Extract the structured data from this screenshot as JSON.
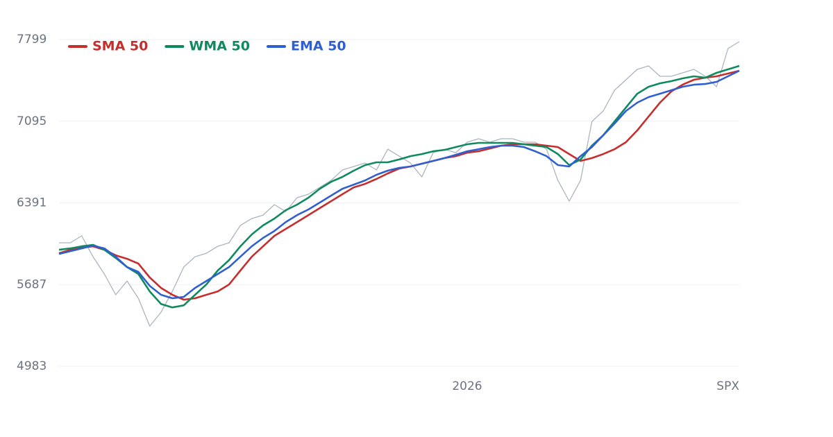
{
  "chart_data": {
    "type": "line",
    "x_label": "SPX",
    "categories": [
      null,
      null,
      null,
      null,
      null,
      null,
      null,
      null,
      null,
      null,
      null,
      null,
      null,
      null,
      null,
      null,
      null,
      null,
      null,
      null,
      null,
      null,
      null,
      null,
      null,
      null,
      null,
      null,
      null,
      null,
      null,
      null,
      null,
      null,
      null,
      null,
      "2026",
      null,
      null,
      null,
      null,
      null,
      null,
      null,
      null,
      null,
      null,
      null,
      null,
      null,
      null,
      null,
      null,
      null,
      null,
      null,
      null,
      null,
      null,
      null,
      null
    ],
    "ylim": [
      4983,
      7799
    ],
    "yticks": [
      4983,
      5687,
      6391,
      7095,
      7799
    ],
    "grid": true,
    "series": [
      {
        "color": "#aab4c0",
        "values": [
          6047,
          6047,
          6107,
          5927,
          5778,
          5599,
          5718,
          5569,
          5329,
          5449,
          5628,
          5838,
          5927,
          5957,
          6017,
          6047,
          6197,
          6256,
          6286,
          6376,
          6316,
          6436,
          6466,
          6525,
          6585,
          6675,
          6705,
          6735,
          6675,
          6854,
          6794,
          6735,
          6615,
          6824,
          6854,
          6824,
          6914,
          6944,
          6914,
          6944,
          6944,
          6914,
          6914,
          6854,
          6585,
          6406,
          6585,
          7093,
          7183,
          7362,
          7452,
          7542,
          7572,
          7482,
          7482,
          7512,
          7542,
          7482,
          7392,
          7721,
          7781
        ]
      },
      {
        "name": "SMA 50",
        "color": "#c62e2e",
        "values": [
          5957,
          5987,
          6005,
          6017,
          5987,
          5939,
          5909,
          5868,
          5748,
          5658,
          5599,
          5557,
          5569,
          5599,
          5628,
          5688,
          5808,
          5927,
          6017,
          6107,
          6167,
          6226,
          6286,
          6346,
          6406,
          6466,
          6525,
          6555,
          6597,
          6645,
          6687,
          6705,
          6729,
          6753,
          6777,
          6794,
          6824,
          6836,
          6860,
          6884,
          6896,
          6896,
          6896,
          6884,
          6872,
          6812,
          6753,
          6777,
          6812,
          6854,
          6914,
          7016,
          7135,
          7255,
          7351,
          7410,
          7452,
          7470,
          7482,
          7506,
          7530
        ]
      },
      {
        "name": "WMA 50",
        "color": "#0f8a5f",
        "values": [
          5987,
          5999,
          6017,
          6029,
          5987,
          5916,
          5838,
          5778,
          5628,
          5520,
          5490,
          5508,
          5599,
          5688,
          5808,
          5898,
          6017,
          6119,
          6197,
          6256,
          6328,
          6376,
          6436,
          6513,
          6573,
          6615,
          6669,
          6717,
          6741,
          6741,
          6765,
          6794,
          6812,
          6836,
          6848,
          6872,
          6896,
          6908,
          6908,
          6908,
          6908,
          6896,
          6884,
          6872,
          6812,
          6717,
          6764,
          6884,
          6974,
          7093,
          7213,
          7332,
          7392,
          7422,
          7440,
          7464,
          7482,
          7470,
          7512,
          7542,
          7572
        ]
      },
      {
        "name": "EMA 50",
        "color": "#2f5fd0",
        "values": [
          5951,
          5975,
          5999,
          6023,
          5999,
          5927,
          5838,
          5796,
          5676,
          5599,
          5569,
          5581,
          5658,
          5718,
          5778,
          5838,
          5927,
          6017,
          6089,
          6149,
          6226,
          6286,
          6334,
          6394,
          6454,
          6513,
          6549,
          6585,
          6633,
          6669,
          6693,
          6705,
          6729,
          6753,
          6777,
          6806,
          6836,
          6854,
          6872,
          6884,
          6884,
          6872,
          6836,
          6794,
          6717,
          6705,
          6794,
          6872,
          6974,
          7075,
          7183,
          7255,
          7303,
          7332,
          7362,
          7392,
          7410,
          7416,
          7434,
          7482,
          7530
        ]
      }
    ]
  }
}
